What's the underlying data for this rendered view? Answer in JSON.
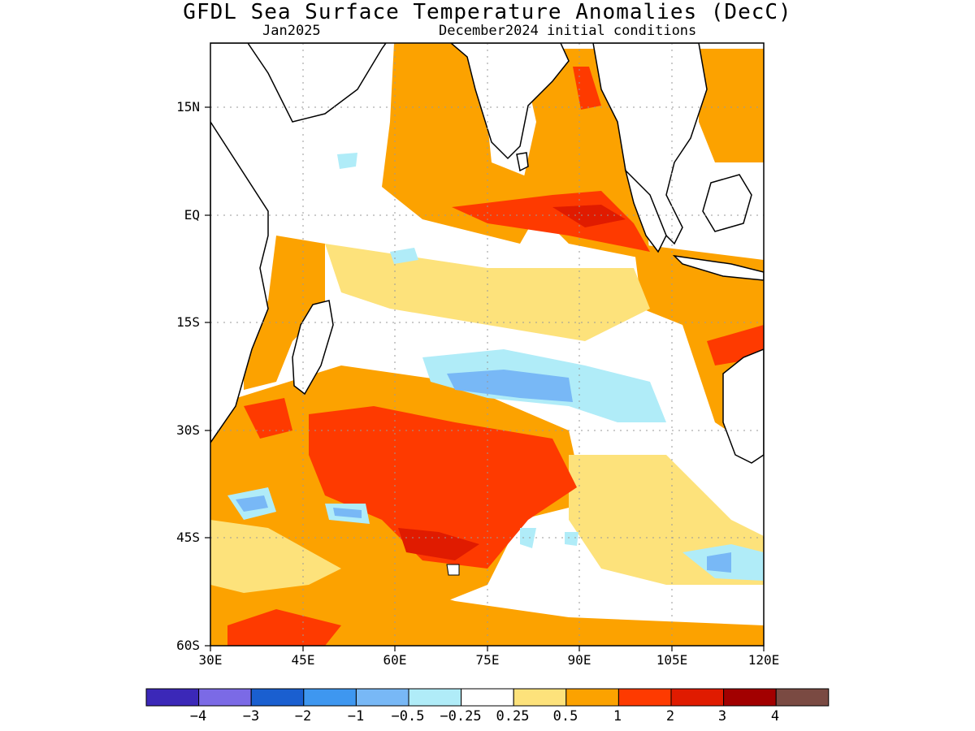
{
  "title": "GFDL Sea Surface Temperature Anomalies (DecC)",
  "subtitle_left": "Jan2025",
  "subtitle_right": "December2024 initial conditions",
  "map": {
    "lon_range": [
      30,
      120
    ],
    "lat_range": [
      -60,
      24
    ],
    "y_ticks": [
      "15N",
      "EQ",
      "15S",
      "30S",
      "45S",
      "60S"
    ],
    "x_ticks": [
      "30E",
      "45E",
      "60E",
      "75E",
      "90E",
      "105E",
      "120E"
    ],
    "grid": "dotted"
  },
  "colorbar": {
    "colors": [
      "#3b28b8",
      "#7b6ae6",
      "#1a5fd0",
      "#3e97f0",
      "#78b8f6",
      "#b0ecf8",
      "#ffffff",
      "#fde27b",
      "#fca200",
      "#fe3a00",
      "#e01b00",
      "#a20000",
      "#7a4a42"
    ],
    "labels": [
      "−4",
      "−3",
      "−2",
      "−1",
      "−0.5",
      "−0.25",
      "0.25",
      "0.5",
      "1",
      "2",
      "3",
      "4"
    ]
  }
}
